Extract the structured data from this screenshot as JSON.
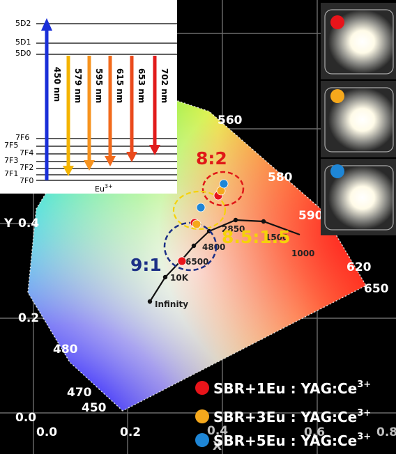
{
  "cie": {
    "axis_y_label": "Y",
    "axis_x_label": "X",
    "y_ticks": [
      "0.4",
      "0.2",
      "0.0"
    ],
    "x_ticks": [
      "0.0",
      "0.2",
      "0.4",
      "0.6",
      "0.8"
    ],
    "wavelengths": [
      "560",
      "580",
      "590",
      "620",
      "650",
      "480",
      "470",
      "450"
    ],
    "planck_labels": [
      "2850",
      "1500",
      "1000",
      "4800",
      "6500",
      "10K",
      "Infinity"
    ]
  },
  "groups": [
    {
      "ratio": "8:2",
      "color": "#e01818"
    },
    {
      "ratio": "8.5:1.5",
      "color": "#f5d20a"
    },
    {
      "ratio": "9:1",
      "color": "#1b2f86"
    }
  ],
  "samples": [
    {
      "label": "SBR+1Eu : YAG:Ce",
      "sup": "3+",
      "color": "#e8141a"
    },
    {
      "label": "SBR+3Eu : YAG:Ce",
      "sup": "3+",
      "color": "#f5a81c"
    },
    {
      "label": "SBR+5Eu : YAG:Ce",
      "sup": "3+",
      "color": "#1e86d6"
    }
  ],
  "energy_diagram": {
    "levels": [
      "5D2",
      "5D1",
      "5D0",
      "7F6",
      "7F5",
      "7F4",
      "7F3",
      "7F2",
      "7F1",
      "7F0"
    ],
    "ion": "Eu",
    "ion_sup": "3+",
    "transitions": [
      {
        "label": "450 nm",
        "color": "#1a2fd8"
      },
      {
        "label": "579 nm",
        "color": "#f4b400"
      },
      {
        "label": "595 nm",
        "color": "#f7931e"
      },
      {
        "label": "615 nm",
        "color": "#f26a1b"
      },
      {
        "label": "653 nm",
        "color": "#ea4a1c"
      },
      {
        "label": "702 nm",
        "color": "#e11b1b"
      }
    ]
  }
}
